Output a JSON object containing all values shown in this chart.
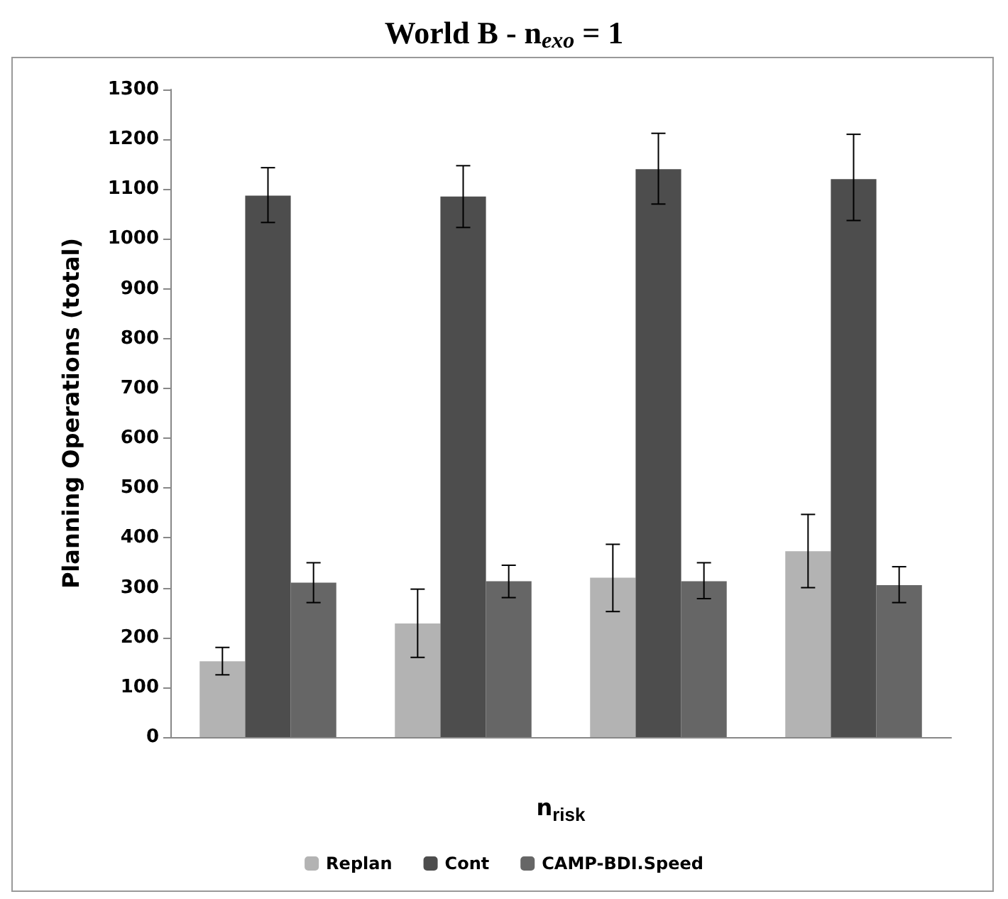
{
  "chart_data": {
    "type": "bar",
    "title": "World B - n$_{exo}$ = 1",
    "xlabel": "n$_{risk}$",
    "ylabel": "Planning Operations (total)",
    "categories": [
      null,
      null,
      null,
      null
    ],
    "series": [
      {
        "name": "Replan",
        "color": "#b3b3b3",
        "values": [
          152,
          228,
          320,
          373
        ],
        "errors": [
          [
            125,
            180
          ],
          [
            160,
            297
          ],
          [
            252,
            387
          ],
          [
            300,
            447
          ]
        ]
      },
      {
        "name": "Cont",
        "color": "#4d4d4d",
        "values": [
          1087,
          1085,
          1140,
          1120
        ],
        "errors": [
          [
            1033,
            1143
          ],
          [
            1023,
            1147
          ],
          [
            1070,
            1212
          ],
          [
            1037,
            1210
          ]
        ]
      },
      {
        "name": "CAMP-BDI.Speed",
        "color": "#666666",
        "values": [
          310,
          313,
          313,
          305
        ],
        "errors": [
          [
            270,
            350
          ],
          [
            280,
            345
          ],
          [
            278,
            350
          ],
          [
            270,
            342
          ]
        ]
      }
    ],
    "ylim": [
      0,
      1300
    ],
    "yticks": [
      0,
      100,
      200,
      300,
      400,
      500,
      600,
      700,
      800,
      900,
      1000,
      1100,
      1200,
      1300
    ],
    "grid": false,
    "legend": "bottom"
  }
}
